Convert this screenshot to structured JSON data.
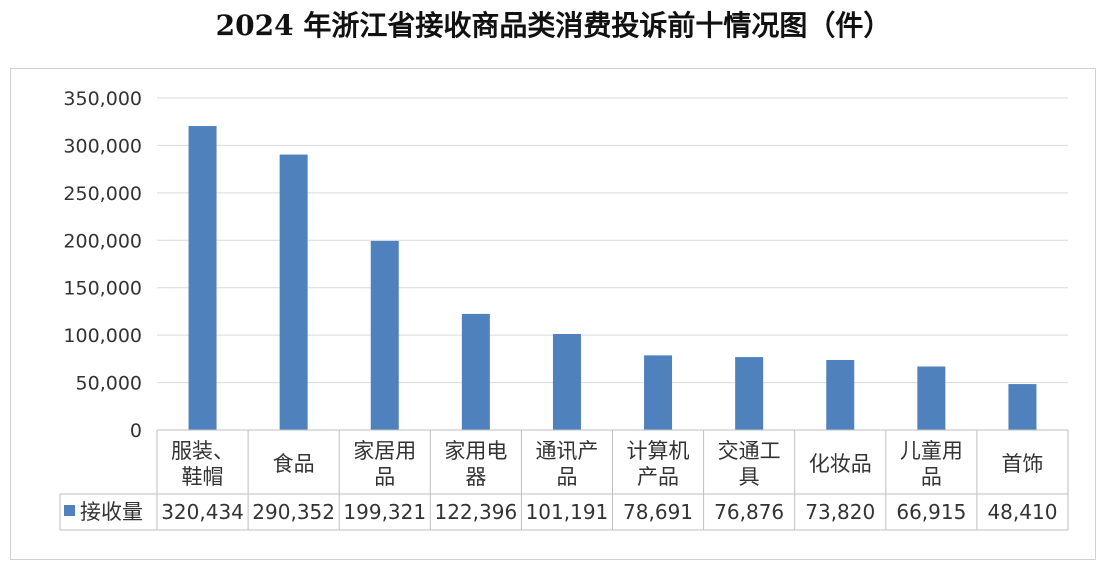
{
  "title": "2024 年浙江省接收商品类消费投诉前十情况图（件）",
  "chart_data": {
    "type": "bar",
    "title": "2024 年浙江省接收商品类消费投诉前十情况图（件）",
    "categories": [
      [
        "服装、",
        "鞋帽"
      ],
      [
        "食品"
      ],
      [
        "家居用",
        "品"
      ],
      [
        "家用电",
        "器"
      ],
      [
        "通讯产",
        "品"
      ],
      [
        "计算机",
        "产品"
      ],
      [
        "交通工",
        "具"
      ],
      [
        "化妆品"
      ],
      [
        "儿童用",
        "品"
      ],
      [
        "首饰"
      ]
    ],
    "series": [
      {
        "name": "接收量",
        "values": [
          320434,
          290352,
          199321,
          122396,
          101191,
          78691,
          76876,
          73820,
          66915,
          48410
        ],
        "value_labels": [
          "320,434",
          "290,352",
          "199,321",
          "122,396",
          "101,191",
          "78,691",
          "76,876",
          "73,820",
          "66,915",
          "48,410"
        ]
      }
    ],
    "ylim": [
      0,
      350000
    ],
    "yticks": [
      "0",
      "50,000",
      "100,000",
      "150,000",
      "200,000",
      "250,000",
      "300,000",
      "350,000"
    ],
    "grid": true,
    "legend": "in data table below x-axis",
    "colors": {
      "bar": "#4f81bd",
      "grid": "#d9d9d9",
      "axis": "#bfbfbf",
      "text": "#333333"
    }
  }
}
